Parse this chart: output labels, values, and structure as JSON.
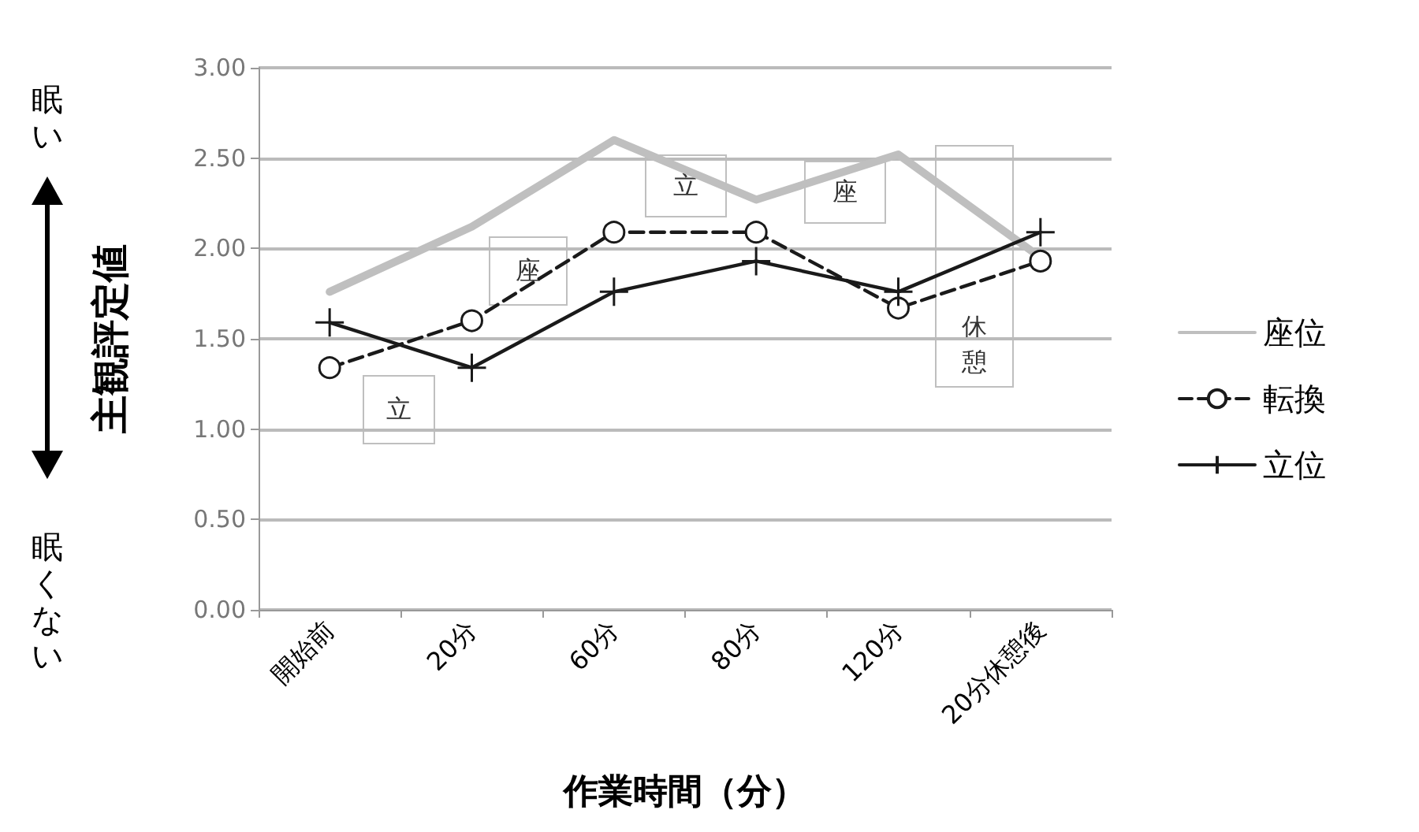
{
  "chart_data": {
    "type": "line",
    "xlabel": "作業時間（分）",
    "ylabel": "主観評定値",
    "categories": [
      "開始前",
      "20分",
      "60分",
      "80分",
      "120分",
      "20分休憩後"
    ],
    "series": [
      {
        "name": "座位",
        "color": "#bfbfbf",
        "marker": "none",
        "line_style": "solid",
        "values": [
          1.76,
          2.12,
          2.6,
          2.27,
          2.52,
          1.95
        ]
      },
      {
        "name": "転換",
        "color": "#1a1a1a",
        "marker": "circle",
        "line_style": "dashed",
        "values": [
          1.34,
          1.6,
          2.09,
          2.09,
          1.67,
          1.93
        ]
      },
      {
        "name": "立位",
        "color": "#1a1a1a",
        "marker": "cross",
        "line_style": "solid",
        "values": [
          1.59,
          1.34,
          1.76,
          1.93,
          1.76,
          2.09
        ]
      }
    ],
    "ylim": [
      0,
      3
    ],
    "yticks": [
      {
        "value": 0,
        "label": "0.00"
      },
      {
        "value": 0.5,
        "label": "0.50"
      },
      {
        "value": 1,
        "label": "1.00"
      },
      {
        "value": 1.5,
        "label": "1.50"
      },
      {
        "value": 2,
        "label": "2.00"
      },
      {
        "value": 2.5,
        "label": "2.50"
      },
      {
        "value": 3,
        "label": "3.00"
      }
    ],
    "grid": "y",
    "legend": "right",
    "annotations": [
      "眠い",
      "眠くない",
      "立",
      "座",
      "立",
      "座",
      "休憩"
    ]
  }
}
